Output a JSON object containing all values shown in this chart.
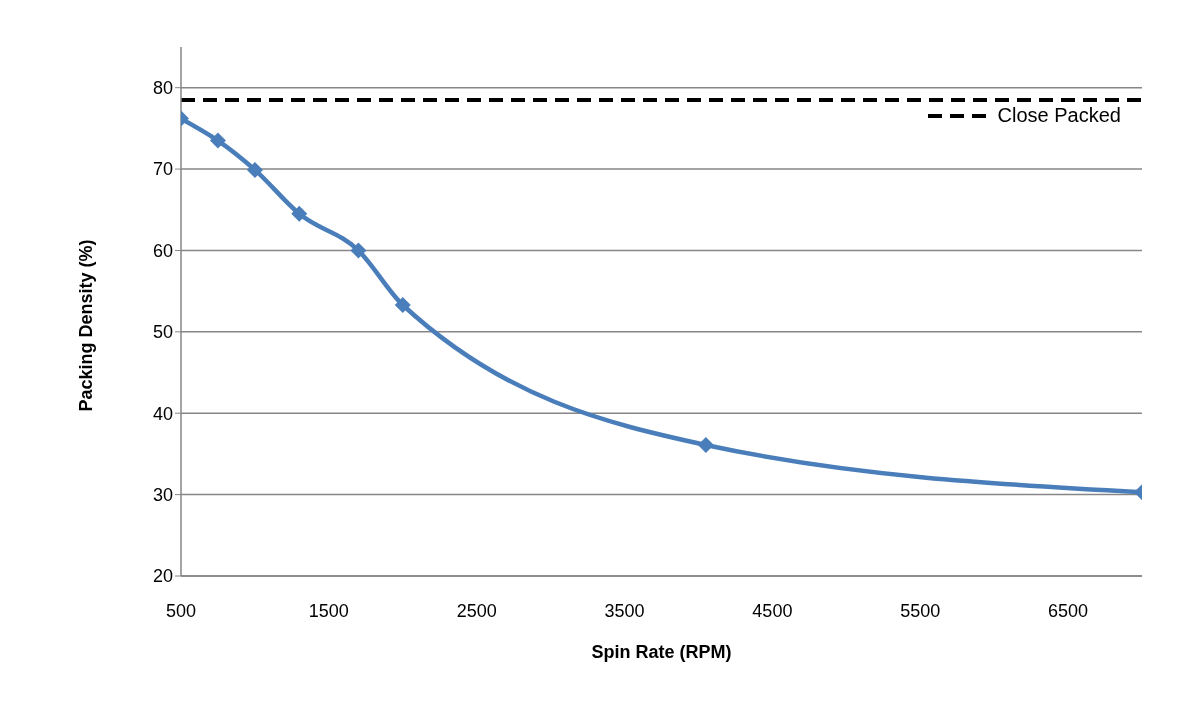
{
  "chart_data": {
    "type": "line",
    "xlabel": "Spin Rate (RPM)",
    "ylabel": "Packing Density (%)",
    "x": [
      500,
      750,
      1000,
      1300,
      1700,
      2000,
      4050,
      7000
    ],
    "series": [
      {
        "color": "#4a7ebb",
        "values": [
          76.2,
          73.5,
          69.9,
          64.5,
          60,
          53.3,
          36.1,
          30.3
        ]
      }
    ],
    "xlim": [
      500,
      7000
    ],
    "xticks": [
      500,
      1500,
      2500,
      3500,
      4500,
      5500,
      6500
    ],
    "ylim": [
      20,
      85
    ],
    "yticks": [
      20,
      30,
      40,
      50,
      60,
      70,
      80
    ],
    "grid": "y",
    "marker": "diamond",
    "line_style": "solid",
    "legend": "top right",
    "ref_lines": [
      {
        "axis": "y",
        "value": 78.5,
        "label": "Close Packed",
        "color": "#000000",
        "line_style": "dashed"
      }
    ]
  }
}
